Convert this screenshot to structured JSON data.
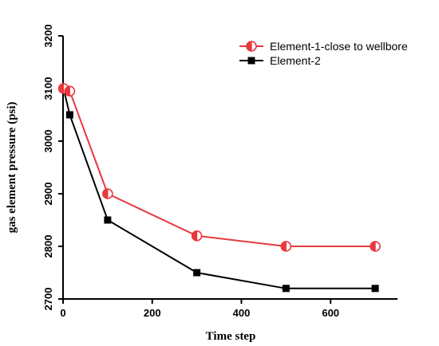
{
  "chart_data": {
    "type": "line",
    "xlabel": "Time step",
    "ylabel": "gas element pressure (psi)",
    "xlim": [
      0,
      750
    ],
    "ylim": [
      2700,
      3200
    ],
    "x_ticks": [
      "0",
      "200",
      "400",
      "600"
    ],
    "y_ticks": [
      "2700",
      "2800",
      "2900",
      "3000",
      "3100",
      "3200"
    ],
    "grid": false,
    "legend_position": "top-right",
    "series": [
      {
        "name": "Element-1-close to wellbore",
        "color": "#e8383d",
        "marker": "half-filled-circle",
        "x": [
          1,
          15,
          100,
          300,
          500,
          700
        ],
        "y": [
          3100,
          3095,
          2900,
          2820,
          2800,
          2800
        ]
      },
      {
        "name": "Element-2",
        "color": "#000000",
        "marker": "filled-square",
        "x": [
          1,
          15,
          100,
          300,
          500,
          700
        ],
        "y": [
          3100,
          3050,
          2850,
          2750,
          2720,
          2720
        ]
      }
    ]
  }
}
